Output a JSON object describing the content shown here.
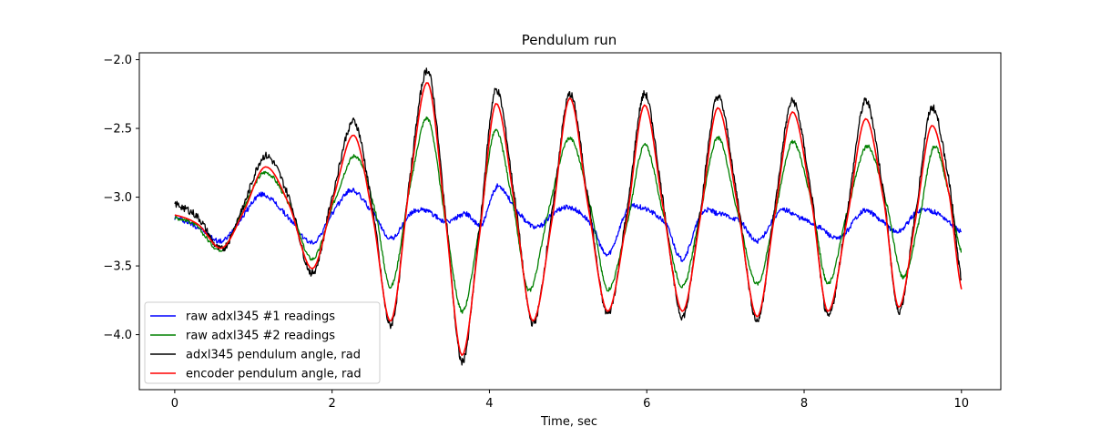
{
  "chart_data": {
    "type": "line",
    "title": "Pendulum run",
    "xlabel": "Time, sec",
    "ylabel": "",
    "xlim": [
      -0.45,
      10.5
    ],
    "ylim": [
      -4.4,
      -1.95
    ],
    "xticks": [
      0,
      2,
      4,
      6,
      8,
      10
    ],
    "xtick_labels": [
      "0",
      "2",
      "4",
      "6",
      "8",
      "10"
    ],
    "yticks": [
      -2.0,
      -2.5,
      -3.0,
      -3.5,
      -4.0
    ],
    "ytick_labels": [
      "−2.0",
      "−2.5",
      "−3.0",
      "−3.5",
      "−4.0"
    ],
    "grid": false,
    "legend_position": "lower-left",
    "series": [
      {
        "name": "raw adxl345 #1 readings",
        "color": "#0000ff",
        "x": [
          0.0,
          0.3,
          0.6,
          0.85,
          1.1,
          1.4,
          1.75,
          2.05,
          2.25,
          2.5,
          2.75,
          3.0,
          3.2,
          3.45,
          3.7,
          3.9,
          4.1,
          4.35,
          4.6,
          4.85,
          5.05,
          5.3,
          5.5,
          5.75,
          5.95,
          6.25,
          6.45,
          6.7,
          6.9,
          7.2,
          7.4,
          7.7,
          7.95,
          8.2,
          8.45,
          8.75,
          9.0,
          9.2,
          9.45,
          9.7,
          10.0
        ],
        "values": [
          -3.15,
          -3.22,
          -3.32,
          -3.15,
          -2.98,
          -3.12,
          -3.33,
          -3.08,
          -2.95,
          -3.1,
          -3.3,
          -3.12,
          -3.1,
          -3.18,
          -3.12,
          -3.2,
          -2.92,
          -3.1,
          -3.22,
          -3.1,
          -3.08,
          -3.2,
          -3.42,
          -3.1,
          -3.08,
          -3.2,
          -3.45,
          -3.12,
          -3.12,
          -3.18,
          -3.32,
          -3.1,
          -3.15,
          -3.22,
          -3.3,
          -3.1,
          -3.18,
          -3.25,
          -3.1,
          -3.12,
          -3.25
        ]
      },
      {
        "name": "raw adxl345 #2 readings",
        "color": "#008000",
        "x": [
          0.0,
          0.25,
          0.6,
          0.9,
          1.15,
          1.45,
          1.75,
          2.05,
          2.3,
          2.55,
          2.75,
          3.0,
          3.22,
          3.45,
          3.65,
          3.85,
          4.07,
          4.3,
          4.5,
          4.75,
          5.02,
          5.3,
          5.5,
          5.75,
          5.97,
          6.2,
          6.45,
          6.65,
          6.9,
          7.15,
          7.4,
          7.6,
          7.85,
          8.1,
          8.3,
          8.55,
          8.8,
          9.05,
          9.25,
          9.45,
          9.65,
          9.85,
          10.0
        ],
        "values": [
          -3.15,
          -3.2,
          -3.38,
          -3.05,
          -2.82,
          -3.05,
          -3.45,
          -3.0,
          -2.7,
          -3.1,
          -3.65,
          -2.9,
          -2.43,
          -3.2,
          -3.83,
          -3.3,
          -2.52,
          -3.05,
          -3.68,
          -3.1,
          -2.57,
          -3.1,
          -3.67,
          -3.2,
          -2.62,
          -3.1,
          -3.65,
          -3.2,
          -2.57,
          -3.1,
          -3.63,
          -3.2,
          -2.6,
          -3.05,
          -3.63,
          -3.1,
          -2.63,
          -3.05,
          -3.58,
          -3.2,
          -2.63,
          -3.0,
          -3.4
        ]
      },
      {
        "name": "adxl345 pendulum angle, rad",
        "color": "#000000",
        "x": [
          0.0,
          0.3,
          0.6,
          0.88,
          1.15,
          1.45,
          1.75,
          2.02,
          2.28,
          2.52,
          2.75,
          3.0,
          3.22,
          3.44,
          3.65,
          3.88,
          4.08,
          4.32,
          4.55,
          4.8,
          5.02,
          5.25,
          5.5,
          5.75,
          5.97,
          6.2,
          6.45,
          6.68,
          6.9,
          7.15,
          7.4,
          7.62,
          7.85,
          8.1,
          8.3,
          8.55,
          8.78,
          9.02,
          9.2,
          9.42,
          9.62,
          9.85,
          10.0
        ],
        "values": [
          -3.05,
          -3.15,
          -3.38,
          -3.05,
          -2.7,
          -3.0,
          -3.55,
          -2.95,
          -2.45,
          -3.1,
          -3.93,
          -2.8,
          -2.08,
          -3.1,
          -4.2,
          -3.2,
          -2.22,
          -3.0,
          -3.92,
          -3.1,
          -2.25,
          -3.0,
          -3.85,
          -3.1,
          -2.25,
          -3.0,
          -3.87,
          -3.1,
          -2.27,
          -3.0,
          -3.9,
          -3.1,
          -2.3,
          -3.0,
          -3.87,
          -3.1,
          -2.3,
          -3.0,
          -3.83,
          -3.1,
          -2.35,
          -2.9,
          -3.6
        ]
      },
      {
        "name": "encoder pendulum angle, rad",
        "color": "#ff0000",
        "x": [
          0.0,
          0.3,
          0.6,
          0.88,
          1.15,
          1.45,
          1.75,
          2.02,
          2.28,
          2.52,
          2.75,
          3.0,
          3.22,
          3.44,
          3.65,
          3.88,
          4.08,
          4.32,
          4.55,
          4.8,
          5.02,
          5.25,
          5.5,
          5.75,
          5.97,
          6.2,
          6.45,
          6.68,
          6.9,
          7.15,
          7.4,
          7.62,
          7.85,
          8.1,
          8.3,
          8.55,
          8.78,
          9.02,
          9.2,
          9.42,
          9.62,
          9.85,
          10.0
        ],
        "values": [
          -3.13,
          -3.2,
          -3.37,
          -3.1,
          -2.78,
          -3.05,
          -3.52,
          -3.0,
          -2.55,
          -3.15,
          -3.9,
          -2.85,
          -2.17,
          -3.15,
          -4.15,
          -3.25,
          -2.32,
          -3.05,
          -3.9,
          -3.15,
          -2.28,
          -3.05,
          -3.83,
          -3.15,
          -2.33,
          -3.05,
          -3.83,
          -3.15,
          -2.35,
          -3.05,
          -3.87,
          -3.15,
          -2.38,
          -3.05,
          -3.83,
          -3.15,
          -2.43,
          -3.05,
          -3.8,
          -3.15,
          -2.48,
          -3.0,
          -3.67
        ]
      }
    ]
  }
}
